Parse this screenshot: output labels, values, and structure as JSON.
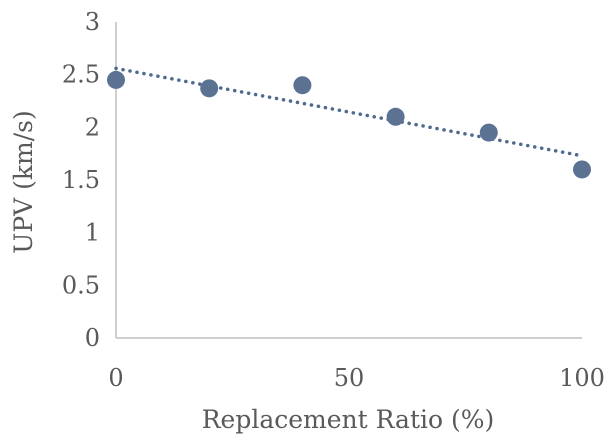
{
  "chart_data": {
    "type": "scatter",
    "title": "",
    "xlabel": "Replacement Ratio (%)",
    "ylabel": "UPV (km/s)",
    "xlim": [
      0,
      100
    ],
    "ylim": [
      0,
      3
    ],
    "x_ticks": [
      0,
      50,
      100
    ],
    "y_ticks": [
      0,
      0.5,
      1,
      1.5,
      2,
      2.5,
      3
    ],
    "x_tick_labels": [
      "0",
      "50",
      "100"
    ],
    "y_tick_labels": [
      "0",
      "0.5",
      "1",
      "1.5",
      "2",
      "2.5",
      "3"
    ],
    "grid": false,
    "legend": "none",
    "series": [
      {
        "x": [
          0,
          20,
          40,
          60,
          80,
          100
        ],
        "y": [
          2.45,
          2.37,
          2.4,
          2.1,
          1.95,
          1.6
        ],
        "color": "#5b7293",
        "trendline": {
          "type": "linear",
          "style": "dotted",
          "color": "#4f6a8f",
          "x": [
            0,
            100
          ],
          "y": [
            2.56,
            1.73
          ]
        }
      }
    ]
  }
}
